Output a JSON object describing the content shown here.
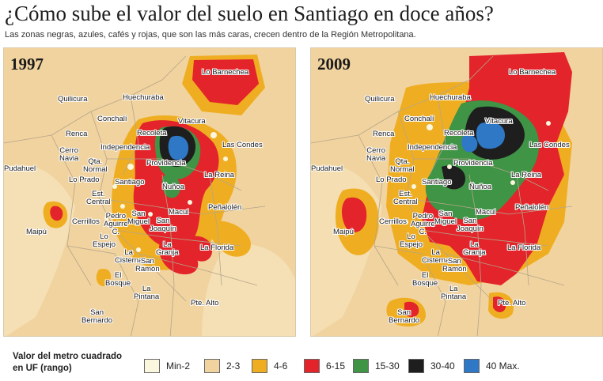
{
  "title": "¿Cómo sube el valor del suelo en Santiago en doce años?",
  "subtitle": "Las zonas negras, azules, cafés y rojas, que son las más caras, crecen dentro de la Región Metropolitana.",
  "colors": {
    "min_2": "#fbf6de",
    "range_2_3": "#f1d39f",
    "range_4_6": "#efae22",
    "range_6_15": "#e3242b",
    "range_15_30": "#3f9446",
    "range_30_40": "#1e1e1e",
    "range_40_max": "#2e78c6"
  },
  "maps": [
    {
      "year": "1997",
      "labels": {
        "lo_barnechea": "Lo Barnechea",
        "quilicura": "Quilicura",
        "huechuraba": "Huechuraba",
        "conchali": "Conchalí",
        "vitacura": "Vitacura",
        "recoleta": "Recoleta",
        "renca": "Renca",
        "independencia": "Independencia",
        "las_condes": "Las Condes",
        "cerro_navia": "Cerro\nNavia",
        "qta_normal": "Qta.\nNormal",
        "providencia": "Providencia",
        "pudahuel": "Pudahuel",
        "lo_prado": "Lo Prado",
        "la_reina": "La Reina",
        "santiago": "Santiago",
        "nunoa": "Ñuñoa",
        "est_central": "Est.\nCentral",
        "penalolen": "Peñalolén",
        "pedro_aguirre": "Pedro\nAguirre\nC.",
        "san_miguel": "San\nMiguel",
        "macul": "Macul",
        "maipu": "Maipú",
        "cerrillos": "Cerrillos",
        "san_joaquin": "San\nJoaquín",
        "lo_espejo": "Lo\nEspejo",
        "la_granja": "La\nGranja",
        "la_florida": "La Florida",
        "la_cisterna": "La\nCisterna",
        "san_ramon": "San\nRamón",
        "el_bosque": "El\nBosque",
        "la_pintana": "La\nPintana",
        "pte_alto": "Pte. Alto",
        "san_bernardo": "San\nBernardo"
      }
    },
    {
      "year": "2009",
      "labels": {
        "lo_barnechea": "Lo Barnechea",
        "quilicura": "Quilicura",
        "huechuraba": "Huechuraba",
        "conchali": "Conchalí",
        "vitacura": "Vitacura",
        "recoleta": "Recoleta",
        "renca": "Renca",
        "independencia": "Independencia",
        "las_condes": "Las Condes",
        "cerro_navia": "Cerro\nNavia",
        "qta_normal": "Qta.\nNormal",
        "providencia": "Providencia",
        "pudahuel": "Pudahuel",
        "lo_prado": "Lo Prado",
        "la_reina": "La Reina",
        "santiago": "Santiago",
        "nunoa": "Ñuñoa",
        "est_central": "Est.\nCentral",
        "penalolen": "Peñalolén",
        "pedro_aguirre": "Pedro\nAguirre\nC.",
        "san_miguel": "San\nMiguel",
        "macul": "Macul",
        "maipu": "Maipú",
        "cerrillos": "Cerrillos",
        "san_joaquin": "San\nJoaquín",
        "lo_espejo": "Lo\nEspejo",
        "la_granja": "La\nGranja",
        "la_florida": "La Florida",
        "la_cisterna": "La\nCisterna",
        "san_ramon": "San\nRamón",
        "el_bosque": "El\nBosque",
        "la_pintana": "La\nPintana",
        "pte_alto": "Pte. Alto",
        "san_bernardo": "San\nBernardo"
      }
    }
  ],
  "legend": {
    "title": "Valor del metro cuadrado\nen UF (rango)",
    "items": [
      {
        "label": "Min-2",
        "color": "#fbf6de"
      },
      {
        "label": "2-3",
        "color": "#f1d39f"
      },
      {
        "label": "4-6",
        "color": "#efae22"
      },
      {
        "label": "6-15",
        "color": "#e3242b"
      },
      {
        "label": "15-30",
        "color": "#3f9446"
      },
      {
        "label": "30-40",
        "color": "#1e1e1e"
      },
      {
        "label": "40 Max.",
        "color": "#2e78c6"
      }
    ]
  }
}
